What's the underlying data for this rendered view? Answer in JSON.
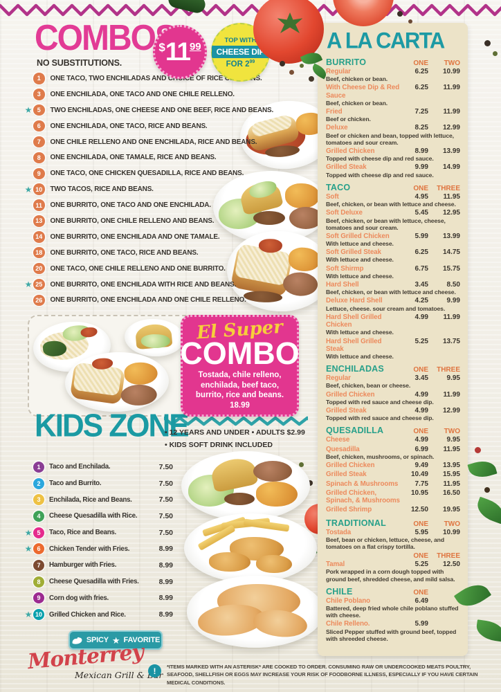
{
  "accents": {
    "pink": "#e2368f",
    "teal": "#1d9aa4",
    "teal_green": "#27a08a",
    "orange": "#df743f",
    "cream": "#ece3c8"
  },
  "icons": {
    "star_glyph": "★",
    "info_glyph": "!"
  },
  "combos": {
    "title": "COMBOS",
    "note": "NO SUBSTITUTIONS.",
    "price_badge": {
      "currency": "$",
      "whole": "11",
      "cents": "99"
    },
    "cheese_badge": {
      "top": "TOP WITH",
      "mid": "CHEESE DIP",
      "bottom": "FOR 2",
      "cents": "99"
    },
    "items": [
      {
        "num": "1",
        "fav": false,
        "text": "ONE TACO, TWO ENCHILADAS AND CHOICE OF RICE OR BEANS."
      },
      {
        "num": "3",
        "fav": false,
        "text": "ONE ENCHILADA, ONE TACO AND ONE CHILE RELLENO."
      },
      {
        "num": "5",
        "fav": true,
        "text": "TWO ENCHILADAS, ONE CHEESE AND ONE BEEF, RICE AND BEANS."
      },
      {
        "num": "6",
        "fav": false,
        "text": "ONE ENCHILADA, ONE TACO, RICE AND BEANS."
      },
      {
        "num": "7",
        "fav": false,
        "text": "ONE CHILE RELLENO AND ONE ENCHILADA, RICE AND BEANS."
      },
      {
        "num": "8",
        "fav": false,
        "text": "ONE ENCHILADA, ONE TAMALE, RICE AND BEANS."
      },
      {
        "num": "9",
        "fav": false,
        "text": "ONE TACO, ONE CHICKEN QUESADILLA, RICE AND BEANS."
      },
      {
        "num": "10",
        "fav": true,
        "text": "TWO TACOS, RICE AND BEANS."
      },
      {
        "num": "11",
        "fav": false,
        "text": "ONE BURRITO, ONE TACO AND ONE ENCHILADA."
      },
      {
        "num": "13",
        "fav": false,
        "text": "ONE BURRITO, ONE CHILE RELLENO AND BEANS."
      },
      {
        "num": "14",
        "fav": false,
        "text": "ONE BURRITO, ONE ENCHILADA AND ONE TAMALE."
      },
      {
        "num": "18",
        "fav": false,
        "text": "ONE BURRITO, ONE TACO, RICE AND BEANS."
      },
      {
        "num": "20",
        "fav": false,
        "text": "ONE TACO, ONE CHILE RELLENO AND ONE BURRITO."
      },
      {
        "num": "25",
        "fav": true,
        "text": "ONE BURRITO, ONE ENCHILADA WITH RICE AND BEANS."
      },
      {
        "num": "26",
        "fav": false,
        "text": "ONE BURRITO, ONE ENCHILADA AND ONE CHILE RELLENO."
      }
    ]
  },
  "super_combo": {
    "script": "El Super",
    "title": "COMBO",
    "desc": "Tostada, chile relleno, enchilada, beef taco, burrito, rice and beans. 18.99"
  },
  "kids_zone": {
    "title": "KIDS ZONE",
    "note_line1": "• 12 YEARS AND UNDER  • ADULTS $2.99",
    "note_line2": "• KIDS SOFT DRINK INCLUDED",
    "items": [
      {
        "num": "1",
        "fav": false,
        "color": "#8a3d94",
        "text": "Taco and Enchilada.",
        "price": "7.50"
      },
      {
        "num": "2",
        "fav": false,
        "color": "#2ba7dd",
        "text": "Taco and Burrito.",
        "price": "7.50"
      },
      {
        "num": "3",
        "fav": false,
        "color": "#eec143",
        "text": "Enchilada, Rice and Beans.",
        "price": "7.50"
      },
      {
        "num": "4",
        "fav": false,
        "color": "#3fa258",
        "text": "Cheese Quesadilla with Rice.",
        "price": "7.50"
      },
      {
        "num": "5",
        "fav": true,
        "color": "#e52b8d",
        "text": "Taco, Rice and Beans.",
        "price": "7.50"
      },
      {
        "num": "6",
        "fav": true,
        "color": "#ec6a2e",
        "text": "Chicken Tender with Fries.",
        "price": "8.99"
      },
      {
        "num": "7",
        "fav": false,
        "color": "#7c4a31",
        "text": "Hamburger with Fries.",
        "price": "8.99"
      },
      {
        "num": "8",
        "fav": false,
        "color": "#a0ad35",
        "text": "Cheese Quesadilla with Fries.",
        "price": "8.99"
      },
      {
        "num": "9",
        "fav": false,
        "color": "#9c2b90",
        "text": "Corn dog with fries.",
        "price": "8.99"
      },
      {
        "num": "10",
        "fav": true,
        "color": "#0aa1ad",
        "text": "Grilled Chicken and Rice.",
        "price": "8.99"
      }
    ]
  },
  "legend": {
    "spicy": "SPICY",
    "favorite": "FAVORITE"
  },
  "footer": {
    "brand": "Monterrey",
    "brand_sub": "Mexican Grill & Bar",
    "disclaimer": "*ITEMS MARKED WITH AN ASTERISK* ARE COOKED TO ORDER. CONSUMING RAW OR UNDERCOOKED MEATS POULTRY, SEAFOOD, SHELLFISH OR EGGS MAY INCREASE YOUR RISK OF FOODBORNE ILLNESS, ESPECIALLY IF YOU HAVE CERTAIN MEDICAL CONDITIONS."
  },
  "alacarta": {
    "title": "A LA CARTA",
    "sections": [
      {
        "name": "BURRITO",
        "col1": "ONE",
        "col2": "TWO",
        "items": [
          {
            "name": "Regular",
            "p1": "6.25",
            "p2": "10.99",
            "desc": "Beef, chicken or bean."
          },
          {
            "name": "With Cheese Dip & Red Sauce",
            "p1": "6.25",
            "p2": "11.99",
            "desc": "Beef, chicken or bean."
          },
          {
            "name": "Fried",
            "p1": "7.25",
            "p2": "11.99",
            "desc": "Beef or chicken."
          },
          {
            "name": "Deluxe",
            "p1": "8.25",
            "p2": "12.99",
            "desc": "Beef or chicken and bean, topped with lettuce, tomatoes and sour cream."
          },
          {
            "name": "Grilled Chicken",
            "p1": "8.99",
            "p2": "13.99",
            "desc": "Topped with cheese dip and red sauce."
          },
          {
            "name": "Grilled Steak",
            "p1": "9.99",
            "p2": "14.99",
            "desc": "Topped with cheese dip and red sauce."
          }
        ]
      },
      {
        "name": "TACO",
        "col1": "ONE",
        "col2": "THREE",
        "items": [
          {
            "name": "Soft",
            "p1": "4.95",
            "p2": "11.95",
            "desc": "Beef, chicken, or bean with lettuce and cheese."
          },
          {
            "name": "Soft Deluxe",
            "p1": "5.45",
            "p2": "12.95",
            "desc": "Beef, chicken, or bean with lettuce, cheese, tomatoes and sour cream."
          },
          {
            "name": "Soft Grilled Chicken",
            "p1": "5.99",
            "p2": "13.99",
            "desc": "With lettuce and cheese."
          },
          {
            "name": "Soft Grilled Steak",
            "p1": "6.25",
            "p2": "14.75",
            "desc": "With lettuce and cheese."
          },
          {
            "name": "Soft Shirmp",
            "p1": "6.75",
            "p2": "15.75",
            "desc": "With lettuce and cheese."
          },
          {
            "name": "Hard Shell",
            "p1": "3.45",
            "p2": "8.50",
            "desc": "Beef, chicken, or bean with lettuce and cheese."
          },
          {
            "name": "Deluxe Hard Shell",
            "p1": "4.25",
            "p2": "9.99",
            "desc": "Lettuce, cheese. sour cream and tomatoes."
          },
          {
            "name": "Hard Shell Grilled Chicken",
            "p1": "4.99",
            "p2": "11.99",
            "desc": "With lettuce and cheese."
          },
          {
            "name": "Hard Shell Grilled Steak",
            "p1": "5.25",
            "p2": "13.75",
            "desc": "With lettuce and cheese."
          }
        ]
      },
      {
        "name": "ENCHILADAS",
        "col1": "ONE",
        "col2": "THREE",
        "items": [
          {
            "name": "Regular",
            "p1": "3.45",
            "p2": "9.95",
            "desc": "Beef, chicken, bean or cheese."
          },
          {
            "name": "Grilled Chicken",
            "p1": "4.99",
            "p2": "11.99",
            "desc": "Topped with red sauce and cheese dip."
          },
          {
            "name": "Grilled Steak",
            "p1": "4.99",
            "p2": "12.99",
            "desc": "Topped with red sauce and cheese dip."
          }
        ]
      },
      {
        "name": "QUESADILLA",
        "col1": "ONE",
        "col2": "TWO",
        "items": [
          {
            "name": "Cheese",
            "p1": "4.99",
            "p2": "9.95",
            "desc": ""
          },
          {
            "name": "Quesadilla",
            "p1": "6.99",
            "p2": "11.95",
            "desc": "Beef, chicken, mushrooms, or spinach."
          },
          {
            "name": "Grilled Chicken",
            "p1": "9.49",
            "p2": "13.95",
            "desc": ""
          },
          {
            "name": "Grilled Steak",
            "p1": "10.49",
            "p2": "15.95",
            "desc": ""
          },
          {
            "name": "Spinach & Mushrooms",
            "p1": "7.75",
            "p2": "11.95",
            "desc": ""
          },
          {
            "name": "Grilled Chicken, Spinach, & Mushrooms",
            "p1": "10.95",
            "p2": "16.50",
            "desc": ""
          },
          {
            "name": "Grilled Shrimp",
            "p1": "12.50",
            "p2": "19.95",
            "desc": ""
          }
        ]
      },
      {
        "name": "TRADITIONAL",
        "col1": "ONE",
        "col2": "TWO",
        "items": [
          {
            "name": "Tostada",
            "p1": "5.95",
            "p2": "10.99",
            "desc": "Beef, bean or chicken, lettuce, cheese, and tomatoes on a flat crispy tortilla."
          }
        ]
      },
      {
        "name": "",
        "col1": "ONE",
        "col2": "THREE",
        "items": [
          {
            "name": "Tamal",
            "p1": "5.25",
            "p2": "12.50",
            "desc": "Pork wrapped in a corn dough topped with ground beef, shredded cheese, and mild salsa."
          }
        ]
      },
      {
        "name": "CHILE",
        "col1": "ONE",
        "col2": "",
        "items": [
          {
            "name": "Chile Poblano",
            "p1": "6.49",
            "p2": "",
            "desc": "Battered, deep fried whole chile poblano stuffed with cheese."
          },
          {
            "name": "Chile Relleno.",
            "p1": "5.99",
            "p2": "",
            "desc": "Sliced Pepper stuffed with ground beef, topped with shreeded cheese."
          }
        ]
      }
    ]
  }
}
